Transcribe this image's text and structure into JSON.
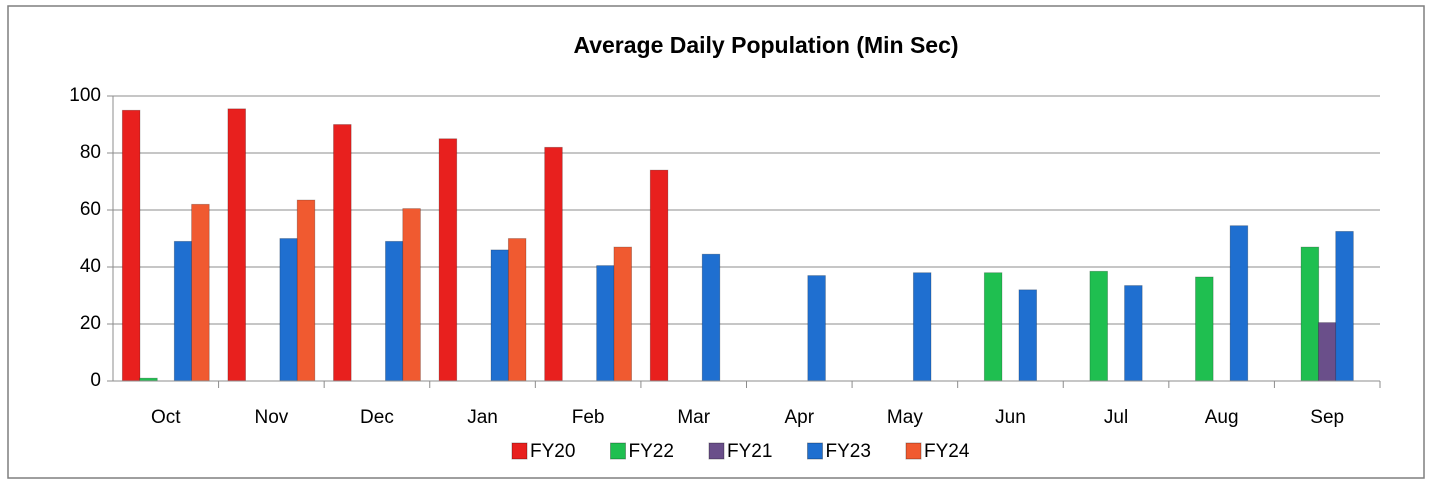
{
  "chart_data": {
    "type": "bar",
    "title": "Average Daily Population (Min Sec)",
    "categories": [
      "Oct",
      "Nov",
      "Dec",
      "Jan",
      "Feb",
      "Mar",
      "Apr",
      "May",
      "Jun",
      "Jul",
      "Aug",
      "Sep"
    ],
    "series": [
      {
        "name": "FY20",
        "color": "#e8201e",
        "values": [
          95,
          95.5,
          90,
          85,
          82,
          74,
          null,
          null,
          null,
          null,
          null,
          null
        ]
      },
      {
        "name": "FY22",
        "color": "#1fbf50",
        "values": [
          1,
          null,
          null,
          null,
          null,
          null,
          null,
          null,
          38,
          38.5,
          36.5,
          47
        ]
      },
      {
        "name": "FY21",
        "color": "#6a4f8a",
        "values": [
          null,
          null,
          null,
          null,
          null,
          null,
          null,
          null,
          null,
          null,
          null,
          20.5
        ]
      },
      {
        "name": "FY23",
        "color": "#1f6fd0",
        "values": [
          49,
          50,
          49,
          46,
          40.5,
          44.5,
          37,
          38,
          32,
          33.5,
          54.5,
          52.5
        ]
      },
      {
        "name": "FY24",
        "color": "#f05a30",
        "values": [
          62,
          63.5,
          60.5,
          50,
          47,
          null,
          null,
          null,
          null,
          null,
          null,
          null
        ]
      }
    ],
    "ylim": [
      0,
      100
    ],
    "yticks": [
      0,
      20,
      40,
      60,
      80,
      100
    ],
    "grid": true,
    "legend": "bottom"
  }
}
